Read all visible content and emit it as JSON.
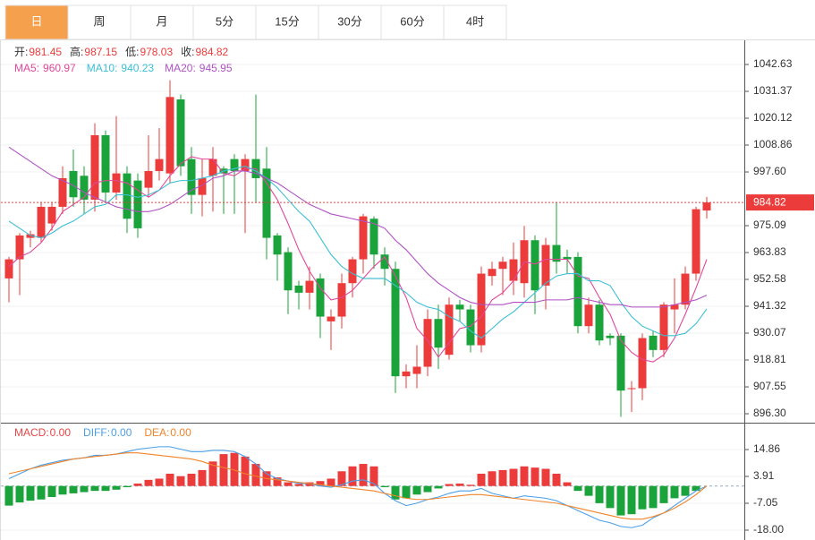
{
  "chart_data": {
    "type": "candlestick",
    "tabs": [
      "日",
      "周",
      "月",
      "5分",
      "15分",
      "30分",
      "60分",
      "4时"
    ],
    "selected_tab": 0,
    "ohlc_labels": {
      "open": "开:",
      "high": "高:",
      "low": "低:",
      "close": "收:"
    },
    "up_color": "#eb3b3b",
    "down_color": "#1aa33a",
    "open": [
      953,
      961,
      970,
      970,
      976,
      983,
      998,
      996,
      986,
      1013,
      989,
      997,
      994,
      991,
      998,
      997,
      1028,
      1003,
      988,
      996,
      999,
      1003,
      998,
      1003,
      999,
      971,
      964,
      950,
      947,
      953,
      935,
      937,
      951,
      961,
      978,
      963,
      957,
      912,
      913,
      916,
      936,
      921,
      942,
      940,
      925,
      954,
      957,
      952,
      951,
      969,
      950,
      967,
      962,
      962,
      933,
      942,
      929,
      929,
      907,
      907,
      929,
      923,
      940,
      942,
      955,
      981.45
    ],
    "high": [
      962,
      972,
      973,
      985,
      985,
      1000,
      1007,
      1000,
      1018,
      1015,
      1021,
      1000,
      997,
      1013,
      1016,
      1036,
      1030,
      1008,
      1003,
      1008,
      1000,
      1005,
      1005,
      1030,
      1008,
      972,
      966,
      952,
      958,
      955,
      940,
      955,
      962,
      980,
      979,
      966,
      960,
      917,
      925,
      940,
      942,
      945,
      944,
      942,
      958,
      960,
      962,
      968,
      975,
      971,
      970,
      985,
      965,
      964,
      945,
      944,
      930,
      930,
      910,
      930,
      931,
      943,
      953,
      958,
      983,
      987.15
    ],
    "low": [
      943,
      946,
      966,
      968,
      973,
      980,
      983,
      980,
      981,
      985,
      986,
      972,
      970,
      987,
      994,
      993,
      996,
      980,
      979,
      981,
      980,
      980,
      972,
      985,
      961,
      952,
      938,
      940,
      940,
      928,
      923,
      932,
      945,
      955,
      957,
      950,
      905,
      907,
      907,
      912,
      915,
      919,
      935,
      922,
      922,
      950,
      946,
      946,
      945,
      938,
      940,
      955,
      955,
      930,
      930,
      925,
      925,
      895,
      897,
      902,
      920,
      920,
      930,
      940,
      952,
      978.03
    ],
    "close": [
      961,
      971,
      971.5,
      983,
      983,
      995,
      987,
      986,
      1013,
      989,
      997,
      978,
      974,
      998,
      1003,
      1029,
      1000,
      988,
      995,
      1003,
      997,
      998,
      1003,
      995,
      970,
      963,
      948,
      947,
      952,
      937,
      937,
      951,
      961,
      979,
      963,
      957,
      912,
      914,
      916,
      936,
      924,
      942,
      940,
      925,
      955,
      957,
      960,
      961,
      969,
      948,
      967,
      960,
      961,
      933,
      942,
      927,
      928,
      906,
      907,
      928,
      923,
      942,
      942,
      955,
      982,
      984.82
    ],
    "ylim": [
      892.55,
      1051.64
    ],
    "yticks": [
      {
        "value": 896.3,
        "label": "896.30"
      },
      907.55,
      918.81,
      930.07,
      941.32,
      952.58,
      963.83,
      975.09,
      {
        "value": 997.6,
        "label": "997.60"
      },
      1008.86,
      1020.12,
      1031.37,
      1042.63
    ],
    "grid": true,
    "series": [
      {
        "name": "MA5:",
        "color": "#e2479a",
        "values": [
          958,
          962,
          964,
          968,
          974,
          981,
          984,
          987,
          993,
          994,
          994,
          993,
          990,
          987,
          990,
          996,
          1001,
          1004,
          1003,
          1003,
          997,
          996,
          999,
          999,
          993,
          986,
          976,
          965,
          956,
          949,
          944,
          945,
          948,
          953,
          958,
          962,
          954,
          945,
          932,
          927,
          920,
          926,
          932,
          933,
          937,
          944,
          947,
          952,
          960,
          959,
          961,
          961,
          961,
          954,
          953,
          945,
          938,
          927,
          922,
          919,
          918,
          921,
          928,
          938,
          949,
          960.97
        ]
      },
      {
        "name": "MA10:",
        "color": "#3bbfd4",
        "values": [
          977,
          974,
          971,
          970,
          972,
          975,
          977,
          980,
          983,
          984,
          988,
          988,
          987,
          988,
          990,
          993,
          994,
          994,
          995,
          996,
          998,
          999,
          1000,
          998,
          995,
          991,
          986,
          981,
          977,
          970,
          963,
          958,
          955,
          953,
          953,
          953,
          950,
          947,
          943,
          941,
          940,
          937,
          935,
          931,
          928,
          932,
          936,
          939,
          943,
          947,
          951,
          954,
          955,
          955,
          952,
          952,
          950,
          943,
          937,
          933,
          931,
          929,
          929,
          930,
          934,
          940.23
        ]
      },
      {
        "name": "MA20:",
        "color": "#b052c4",
        "values": [
          1008,
          1005,
          1002,
          999,
          996,
          994,
          992,
          989,
          987,
          985,
          983,
          982,
          981,
          981,
          982,
          984,
          987,
          990,
          992,
          995,
          996,
          998,
          998,
          997,
          995,
          993,
          990,
          987,
          984,
          982,
          980,
          979,
          978,
          977,
          976,
          974,
          969,
          965,
          960,
          955,
          951,
          948,
          945,
          943,
          942,
          942,
          942,
          943,
          943,
          943,
          944,
          944,
          944,
          945,
          944,
          943,
          942,
          942,
          941,
          941,
          941,
          941,
          942,
          943,
          944,
          945.95
        ]
      }
    ],
    "macd": {
      "ylim": [
        -22.02,
        25.08
      ],
      "yticks": [
        {
          "value": -18,
          "label": "-18.00"
        },
        -7.05,
        3.91,
        14.86
      ],
      "histogram": {
        "name": "MACD:",
        "legend_label": "0.00",
        "color": "#e84545",
        "values": [
          -8,
          -6.7,
          -6,
          -5.5,
          -4.5,
          -3.5,
          -3,
          -2.5,
          -2,
          -2,
          -1.5,
          -0.5,
          1,
          2.5,
          3,
          5,
          4,
          5,
          6.5,
          10,
          13,
          13.5,
          12,
          9,
          6,
          3.5,
          1.5,
          0.8,
          1.5,
          2,
          3,
          6,
          8,
          9,
          8,
          -0.5,
          -5.5,
          -5,
          -3.5,
          -2.5,
          -1,
          0.8,
          1,
          0.5,
          5,
          6,
          6.5,
          7,
          8,
          7.5,
          7,
          5,
          1.5,
          -2,
          -4,
          -7,
          -9,
          -12,
          -11.5,
          -9.5,
          -9,
          -7,
          -5,
          -4,
          -2,
          0
        ]
      },
      "series": [
        {
          "name": "DIFF:",
          "legend_label": "0.00",
          "color": "#4b9fe8",
          "values": [
            3,
            5,
            7,
            8.5,
            9.5,
            10.5,
            11,
            11.5,
            12.5,
            12.5,
            13,
            14,
            15,
            15.5,
            16,
            16,
            15,
            14,
            14,
            14.5,
            14.5,
            14,
            12,
            9,
            5,
            3,
            2,
            1,
            1,
            0,
            -0.5,
            0.5,
            2,
            2.5,
            1,
            -3,
            -6,
            -8,
            -7,
            -5.5,
            -4.5,
            -3,
            -2,
            -2,
            -1,
            -3,
            -4,
            -5,
            -4,
            -4.5,
            -5,
            -6,
            -8,
            -10,
            -12,
            -14,
            -15,
            -16.5,
            -17,
            -16,
            -13,
            -11,
            -8,
            -5,
            -2,
            0
          ]
        },
        {
          "name": "DEA:",
          "legend_label": "0.00",
          "color": "#f0842a",
          "values": [
            5,
            6,
            7,
            8,
            9,
            10,
            11,
            11.5,
            12,
            12.5,
            13,
            13.5,
            13.5,
            13,
            12.5,
            12,
            11.5,
            11,
            10,
            8.5,
            7.5,
            6.5,
            5,
            4,
            3,
            2.5,
            2,
            1.5,
            1,
            0.5,
            0,
            -0.5,
            -1,
            -1.5,
            -2,
            -3,
            -4,
            -5,
            -5.5,
            -5.5,
            -5,
            -4.5,
            -4,
            -3.5,
            -3.5,
            -4,
            -4.5,
            -5,
            -5.5,
            -6,
            -6.5,
            -7,
            -8,
            -9,
            -10,
            -11,
            -12,
            -13,
            -13.5,
            -13.5,
            -12.5,
            -11,
            -9,
            -6.5,
            -3.5,
            0
          ]
        }
      ]
    }
  }
}
